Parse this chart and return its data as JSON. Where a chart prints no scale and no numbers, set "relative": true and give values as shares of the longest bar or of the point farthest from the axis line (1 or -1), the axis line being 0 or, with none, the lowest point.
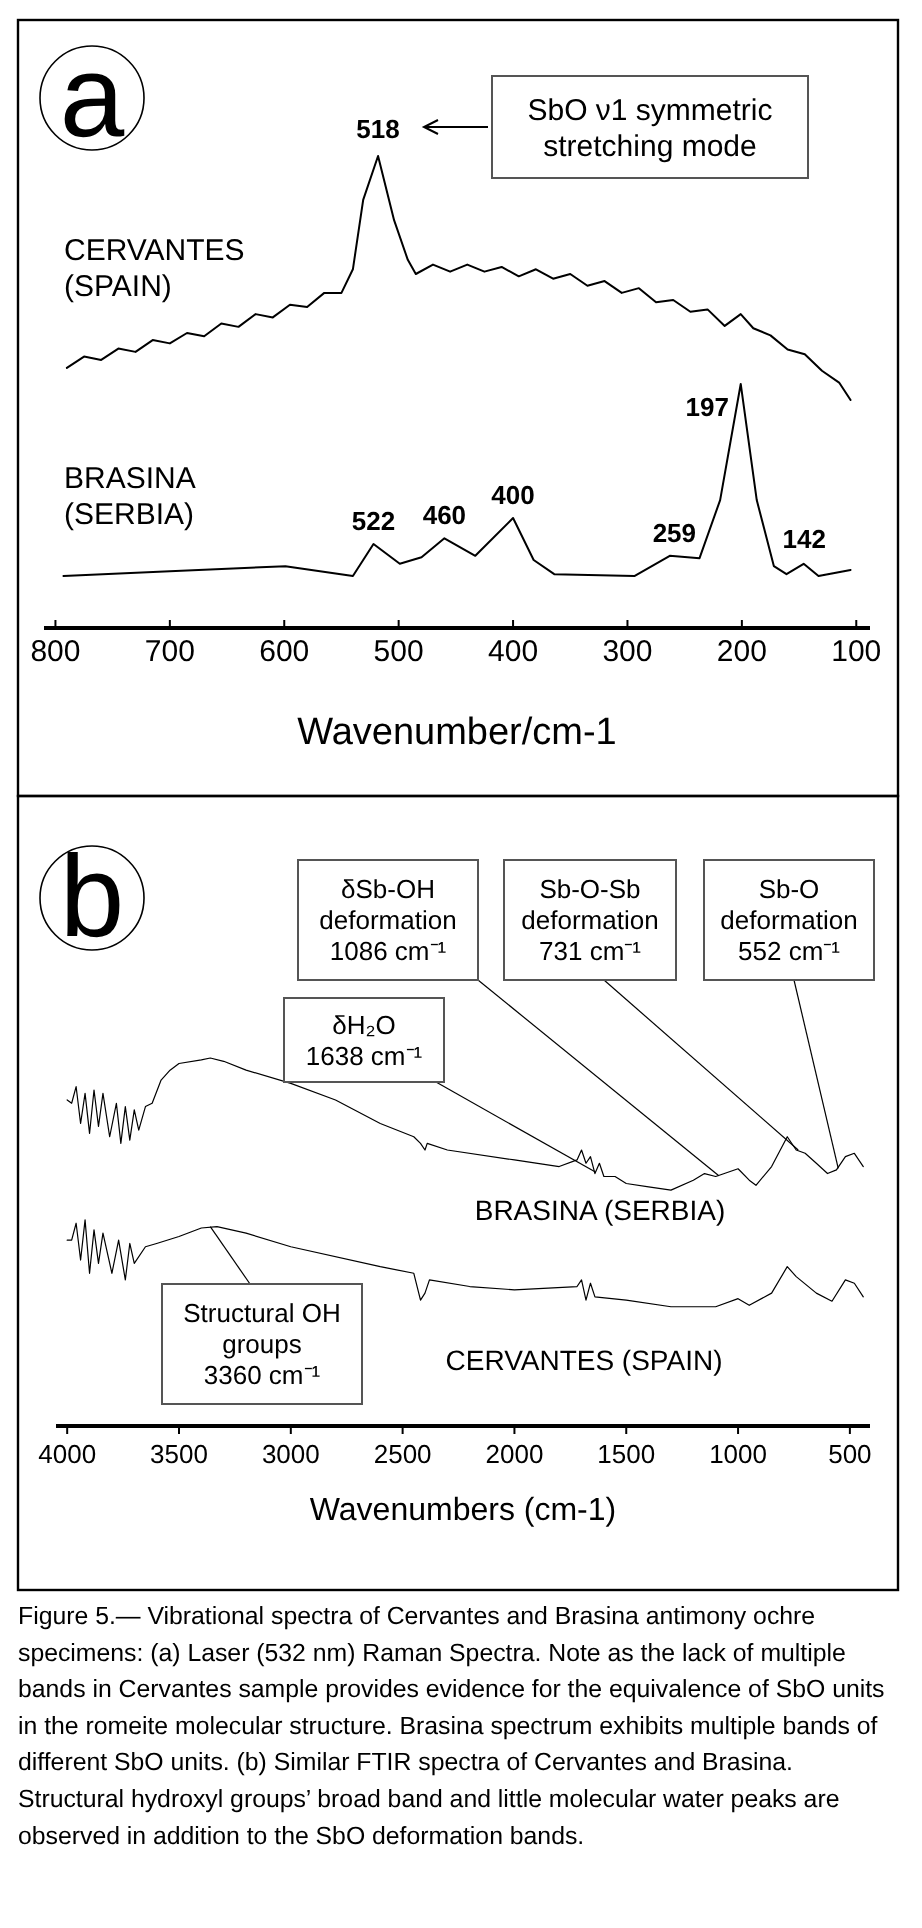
{
  "chart_data": [
    {
      "type": "line",
      "title": "a",
      "xlabel": "Wavenumber/cm-1",
      "relative": true,
      "xlim": [
        810,
        88
      ],
      "xticks": [
        800,
        700,
        600,
        500,
        400,
        300,
        200,
        100
      ],
      "tick_labels": "x",
      "series": [
        {
          "name": "CERVANTES (SPAIN)",
          "color": "#000000",
          "x": [
            790,
            775,
            760,
            745,
            730,
            715,
            700,
            685,
            670,
            655,
            640,
            625,
            610,
            595,
            580,
            565,
            550,
            540,
            531,
            518,
            504,
            492,
            485,
            470,
            455,
            440,
            425,
            410,
            395,
            380,
            365,
            350,
            335,
            320,
            305,
            290,
            275,
            260,
            245,
            230,
            215,
            201,
            190,
            175,
            160,
            145,
            130,
            115,
            105
          ],
          "values": [
            0.551,
            0.575,
            0.568,
            0.592,
            0.585,
            0.61,
            0.603,
            0.625,
            0.618,
            0.645,
            0.638,
            0.665,
            0.658,
            0.685,
            0.68,
            0.71,
            0.71,
            0.76,
            0.907,
            1.0,
            0.864,
            0.78,
            0.75,
            0.77,
            0.755,
            0.77,
            0.755,
            0.765,
            0.745,
            0.76,
            0.74,
            0.75,
            0.725,
            0.735,
            0.71,
            0.72,
            0.69,
            0.695,
            0.67,
            0.675,
            0.64,
            0.665,
            0.635,
            0.62,
            0.59,
            0.58,
            0.545,
            0.52,
            0.483
          ]
        },
        {
          "name": "BRASINA (SERBIA)",
          "color": "#000000",
          "x": [
            793,
            700,
            599,
            540,
            522,
            499,
            480,
            460,
            433,
            400,
            382,
            364,
            294,
            263,
            237,
            219,
            201,
            187,
            172,
            161,
            146,
            133,
            105
          ],
          "values": [
            0.11,
            0.12,
            0.131,
            0.11,
            0.178,
            0.136,
            0.15,
            0.19,
            0.153,
            0.233,
            0.144,
            0.114,
            0.11,
            0.153,
            0.148,
            0.271,
            0.517,
            0.271,
            0.131,
            0.114,
            0.136,
            0.11,
            0.123
          ]
        }
      ],
      "annotations": [
        "SbO ν1 symmetric stretching mode",
        {
          "text": "518",
          "x": 518,
          "y": 1.0
        },
        {
          "text": "522",
          "x": 522,
          "y": 0.178
        },
        {
          "text": "460",
          "x": 460,
          "y": 0.19
        },
        {
          "text": "400",
          "x": 400,
          "y": 0.233
        },
        {
          "text": "259",
          "x": 259,
          "y": 0.153
        },
        {
          "text": "197",
          "x": 197,
          "y": 0.517
        },
        {
          "text": "142",
          "x": 142,
          "y": 0.136
        }
      ]
    },
    {
      "type": "line",
      "title": "b",
      "xlabel": "Wavenumbers (cm-1)",
      "relative": true,
      "xlim": [
        4050,
        410
      ],
      "xticks": [
        4000,
        3500,
        3000,
        2500,
        2000,
        1500,
        1000,
        500
      ],
      "tick_labels": "x",
      "series": [
        {
          "name": "BRASINA (SERBIA)",
          "color": "#000000",
          "x": [
            4000,
            3980,
            3960,
            3940,
            3920,
            3900,
            3880,
            3860,
            3840,
            3810,
            3780,
            3760,
            3740,
            3720,
            3700,
            3680,
            3650,
            3620,
            3580,
            3540,
            3500,
            3400,
            3360,
            3300,
            3200,
            3000,
            2800,
            2600,
            2450,
            2420,
            2400,
            2390,
            2300,
            2000,
            1800,
            1720,
            1700,
            1680,
            1660,
            1640,
            1620,
            1600,
            1550,
            1500,
            1400,
            1300,
            1200,
            1150,
            1100,
            1000,
            950,
            920,
            850,
            780,
            740,
            700,
            650,
            600,
            560,
            520,
            480,
            440
          ],
          "values": [
            0.886,
            0.877,
            0.922,
            0.822,
            0.904,
            0.795,
            0.913,
            0.814,
            0.904,
            0.786,
            0.877,
            0.768,
            0.868,
            0.777,
            0.859,
            0.804,
            0.868,
            0.877,
            0.94,
            0.967,
            0.985,
            0.995,
            1.0,
            0.991,
            0.967,
            0.931,
            0.886,
            0.822,
            0.786,
            0.768,
            0.75,
            0.768,
            0.75,
            0.723,
            0.705,
            0.723,
            0.75,
            0.714,
            0.732,
            0.686,
            0.714,
            0.678,
            0.678,
            0.659,
            0.65,
            0.641,
            0.668,
            0.686,
            0.678,
            0.699,
            0.668,
            0.654,
            0.705,
            0.786,
            0.75,
            0.741,
            0.714,
            0.686,
            0.696,
            0.732,
            0.741,
            0.705
          ]
        },
        {
          "name": "CERVANTES (SPAIN)",
          "color": "#000000",
          "x": [
            4000,
            3980,
            3960,
            3940,
            3920,
            3900,
            3880,
            3860,
            3840,
            3800,
            3770,
            3740,
            3720,
            3700,
            3650,
            3600,
            3500,
            3400,
            3330,
            3200,
            3000,
            2600,
            2450,
            2420,
            2400,
            2380,
            2200,
            2000,
            1720,
            1700,
            1680,
            1660,
            1640,
            1500,
            1300,
            1100,
            1000,
            950,
            850,
            780,
            740,
            650,
            580,
            520,
            480,
            440
          ],
          "values": [
            0.505,
            0.505,
            0.551,
            0.451,
            0.56,
            0.415,
            0.533,
            0.442,
            0.524,
            0.415,
            0.505,
            0.397,
            0.496,
            0.442,
            0.487,
            0.496,
            0.515,
            0.538,
            0.542,
            0.524,
            0.487,
            0.433,
            0.415,
            0.342,
            0.361,
            0.397,
            0.379,
            0.37,
            0.379,
            0.397,
            0.342,
            0.388,
            0.351,
            0.342,
            0.324,
            0.324,
            0.346,
            0.328,
            0.361,
            0.433,
            0.406,
            0.361,
            0.339,
            0.397,
            0.388,
            0.351
          ]
        }
      ],
      "annotations": [
        {
          "text": "δSb-OH deformation 1086 cm⁻¹",
          "x": 1086,
          "y": 0.68
        },
        {
          "text": "Sb-O-Sb deformation 731 cm⁻¹",
          "x": 731,
          "y": 0.75
        },
        {
          "text": "Sb-O deformation 552 cm⁻¹",
          "x": 552,
          "y": 0.7
        },
        {
          "text": "δH₂O 1638 cm⁻¹",
          "x": 1638,
          "y": 0.69
        },
        {
          "text": "Structural OH groups 3360 cm⁻¹",
          "x": 3360,
          "y": 0.542
        },
        "Figure 5.— Vibrational spectra of Cervantes and Brasina antimony ochre specimens: (a) Laser (532 nm) Raman Spectra. Note as the lack of multiple bands in Cervantes sample provides evidence for the equivalence of SbO units in the romeite molecular structure. Brasina spectrum exhibits multiple bands of different SbO units. (b) Similar FTIR spectra of Cervantes and Brasina. Structural hydroxyl groups’ broad band and little molecular water peaks are observed in addition to the SbO deformation bands."
      ]
    }
  ]
}
